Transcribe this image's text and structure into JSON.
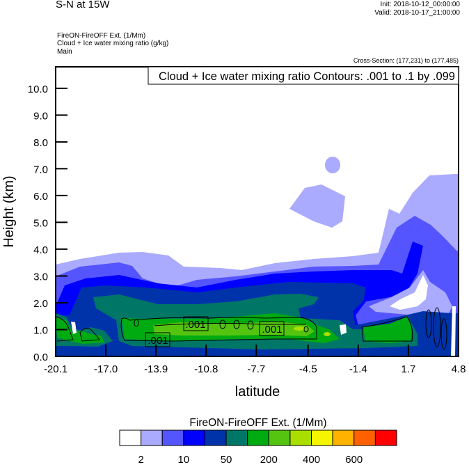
{
  "header": {
    "title": "S-N at 15W",
    "init": "Init: 2018-10-12_00:00:00",
    "valid": "Valid: 2018-10-17_21:00:00",
    "subtitle_lines": [
      "FireON-FireOFF Ext.   (1/Mm)",
      "Cloud + Ice water mixing ratio   (g/kg)",
      "Main"
    ],
    "cross_section": "Cross-Section: (177,231) to (177,485)"
  },
  "chart_data": {
    "type": "heatmap",
    "title": "S-N at 15W",
    "xlabel": "latitude",
    "ylabel": "Height (km)",
    "xlim": [
      -20.1,
      4.8
    ],
    "ylim": [
      0,
      10.8
    ],
    "x_ticks": [
      "-20.1",
      "-17.0",
      "-13.9",
      "-10.8",
      "-7.7",
      "-4.5",
      "-1.4",
      "1.7",
      "4.8"
    ],
    "x_tick_values": [
      -20.1,
      -17.0,
      -13.9,
      -10.8,
      -7.7,
      -4.5,
      -1.4,
      1.7,
      4.8
    ],
    "y_ticks": [
      "0.0",
      "1.0",
      "2.0",
      "3.0",
      "4.0",
      "5.0",
      "6.0",
      "7.0",
      "8.0",
      "9.0",
      "10.0"
    ],
    "y_tick_values": [
      0,
      1,
      2,
      3,
      4,
      5,
      6,
      7,
      8,
      9,
      10
    ],
    "contour_legend": "Cloud + Ice water mixing ratio Contours: .001 to .1 by .099",
    "contour_labels": [
      ".001",
      ".001",
      ".001"
    ],
    "colorbar": {
      "title": "FireON-FireOFF Ext.  (1/Mm)",
      "labels": [
        "2",
        "10",
        "50",
        "200",
        "400",
        "600"
      ],
      "colors": [
        "#FFFFFF",
        "#AAAAFF",
        "#5555FF",
        "#0000FF",
        "#0033AA",
        "#007766",
        "#00AA11",
        "#55C411",
        "#AADD00",
        "#F5F500",
        "#FFB300",
        "#FF6000",
        "#FF0000"
      ]
    },
    "grid": false
  }
}
